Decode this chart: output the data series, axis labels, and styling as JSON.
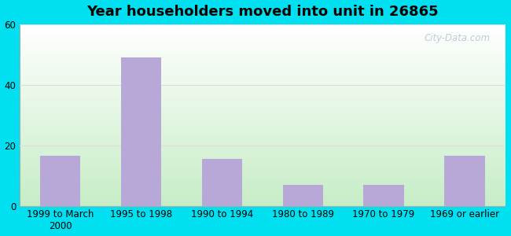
{
  "title": "Year householders moved into unit in 26865",
  "categories": [
    "1999 to March\n2000",
    "1995 to 1998",
    "1990 to 1994",
    "1980 to 1989",
    "1970 to 1979",
    "1969 or earlier"
  ],
  "values": [
    16.5,
    49,
    15.5,
    7,
    7,
    16.5
  ],
  "bar_color": "#b8a8d8",
  "background_outer": "#00e0f0",
  "ylim": [
    0,
    60
  ],
  "yticks": [
    0,
    20,
    40,
    60
  ],
  "title_fontsize": 13,
  "tick_fontsize": 8.5,
  "watermark": "City-Data.com",
  "grid_color": "#dddddd",
  "bg_top_color": "#ffffff",
  "bg_bottom_color": "#c8eec8"
}
